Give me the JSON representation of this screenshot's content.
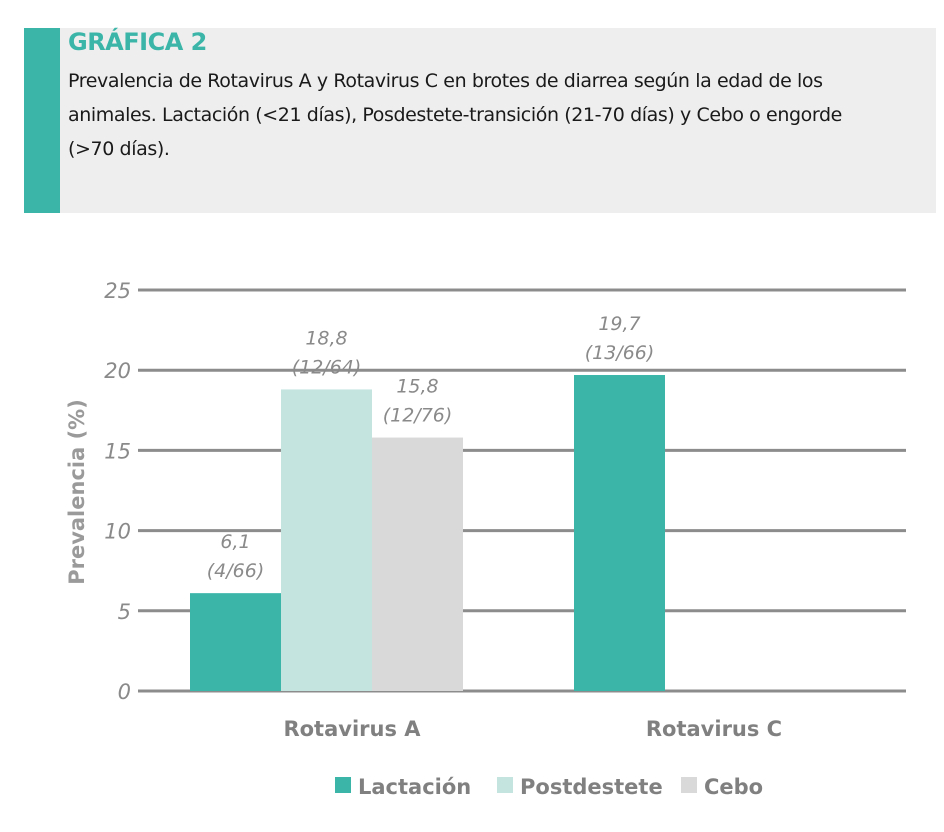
{
  "header": {
    "title": "GRÁFICA 2",
    "subtitle": "Prevalencia de Rotavirus A y Rotavirus C en brotes de diarrea según la edad de los animales. Lactación (<21 días), Posdestete-transición (21-70 días) y Cebo o engorde (>70 días).",
    "accent_color": "#3ab5a8"
  },
  "chart_data": {
    "type": "bar",
    "categories": [
      "Rotavirus A",
      "Rotavirus C"
    ],
    "series": [
      {
        "name": "Lactación",
        "color": "#3ab5a8",
        "values": [
          6.1,
          19.7
        ],
        "labels": [
          [
            "6,1",
            "(4/66)"
          ],
          [
            "19,7",
            "(13/66)"
          ]
        ]
      },
      {
        "name": "Postdestete",
        "color": "#c3e4df",
        "values": [
          18.8,
          null
        ],
        "labels": [
          [
            "18,8",
            "(12/64)"
          ],
          null
        ]
      },
      {
        "name": "Cebo",
        "color": "#d9d9d9",
        "values": [
          15.8,
          null
        ],
        "labels": [
          [
            "15,8",
            "(12/76)"
          ],
          null
        ]
      }
    ],
    "ylabel": "Prevalencia (%)",
    "xlabel": "",
    "ylim": [
      0,
      25
    ],
    "yticks": [
      0,
      5,
      10,
      15,
      20,
      25
    ],
    "grid": true,
    "legend": "bottom"
  }
}
